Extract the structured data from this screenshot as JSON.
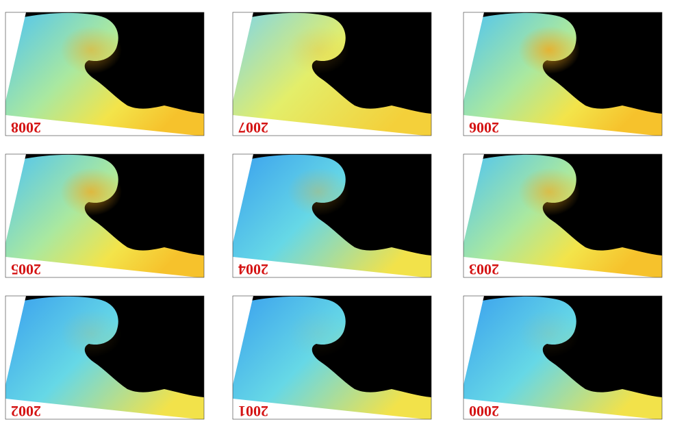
{
  "panels": [
    {
      "year": "2008"
    },
    {
      "year": "2007"
    },
    {
      "year": "2006"
    },
    {
      "year": "2005"
    },
    {
      "year": "2004"
    },
    {
      "year": "2003"
    },
    {
      "year": "2002"
    },
    {
      "year": "2001"
    },
    {
      "year": "2000"
    }
  ]
}
